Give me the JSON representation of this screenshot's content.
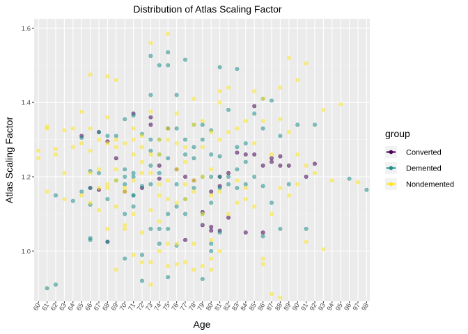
{
  "chart_data": {
    "type": "scatter",
    "title": "Distribution of Atlas Scaling Factor",
    "xlabel": "Age",
    "ylabel": "Atlas Scaling Factor",
    "x_categories": [
      "60",
      "61",
      "62",
      "63",
      "64",
      "65",
      "66",
      "67",
      "68",
      "69",
      "70",
      "71",
      "72",
      "73",
      "74",
      "75",
      "76",
      "77",
      "78",
      "79",
      "80",
      "81",
      "82",
      "83",
      "84",
      "85",
      "86",
      "87",
      "88",
      "89",
      "90",
      "91",
      "92",
      "93",
      "94",
      "95",
      "96",
      "97",
      "98"
    ],
    "ylim": [
      0.865,
      1.625
    ],
    "y_ticks": [
      1.0,
      1.2,
      1.4,
      1.6
    ],
    "y_tick_labels": [
      "1.0",
      "1.2",
      "1.4",
      "1.6"
    ],
    "grid": true,
    "legend": {
      "title": "group",
      "position": "right"
    },
    "series": [
      {
        "name": "Converted",
        "color": "#440154",
        "points": [
          [
            65,
            1.31
          ],
          [
            66,
            1.17
          ],
          [
            67,
            1.165
          ],
          [
            67,
            1.32
          ],
          [
            68,
            1.025
          ],
          [
            68,
            1.295
          ],
          [
            69,
            1.25
          ],
          [
            70,
            1.16
          ],
          [
            71,
            1.37
          ],
          [
            72,
            1.17
          ],
          [
            73,
            1.36
          ],
          [
            73,
            1.34
          ],
          [
            74,
            1.23
          ],
          [
            74,
            1.195
          ],
          [
            75,
            1.33
          ],
          [
            76,
            1.22
          ],
          [
            77,
            1.03
          ],
          [
            77,
            1.2
          ],
          [
            78,
            1.19
          ],
          [
            79,
            1.07
          ],
          [
            79,
            1.105
          ],
          [
            80,
            1.16
          ],
          [
            80,
            1.065
          ],
          [
            80,
            1.055
          ],
          [
            81,
            1.175
          ],
          [
            81,
            1.055
          ],
          [
            81,
            1.2
          ],
          [
            82,
            1.21
          ],
          [
            82,
            1.09
          ],
          [
            83,
            1.265
          ],
          [
            84,
            1.26
          ],
          [
            84,
            1.05
          ],
          [
            85,
            1.39
          ],
          [
            85,
            1.26
          ],
          [
            86,
            1.05
          ],
          [
            86,
            1.23
          ],
          [
            87,
            1.25
          ],
          [
            87,
            1.24
          ],
          [
            88,
            1.255
          ],
          [
            88,
            1.23
          ],
          [
            89,
            1.23
          ],
          [
            91,
            1.2
          ],
          [
            92,
            1.235
          ]
        ]
      },
      {
        "name": "Demented",
        "color": "#21908C",
        "points": [
          [
            61,
            0.9
          ],
          [
            62,
            0.91
          ],
          [
            62,
            1.15
          ],
          [
            64,
            1.135
          ],
          [
            65,
            1.16
          ],
          [
            65,
            1.305
          ],
          [
            66,
            1.035
          ],
          [
            66,
            1.215
          ],
          [
            66,
            1.125
          ],
          [
            66,
            1.03
          ],
          [
            66,
            1.17
          ],
          [
            67,
            1.32
          ],
          [
            67,
            1.21
          ],
          [
            68,
            1.14
          ],
          [
            68,
            1.31
          ],
          [
            68,
            1.025
          ],
          [
            69,
            1.31
          ],
          [
            69,
            1.19
          ],
          [
            70,
            1.355
          ],
          [
            70,
            1.22
          ],
          [
            70,
            1.2
          ],
          [
            70,
            1.1
          ],
          [
            70,
            1.18
          ],
          [
            70,
            0.98
          ],
          [
            71,
            1.365
          ],
          [
            71,
            1.21
          ],
          [
            71,
            1.15
          ],
          [
            71,
            1.15
          ],
          [
            71,
            1.2
          ],
          [
            71,
            1.12
          ],
          [
            72,
            1.175
          ],
          [
            72,
            1.315
          ],
          [
            72,
            0.92
          ],
          [
            72,
            0.99
          ],
          [
            73,
            1.525
          ],
          [
            73,
            1.42
          ],
          [
            73,
            1.3
          ],
          [
            73,
            1.27
          ],
          [
            73,
            1.18
          ],
          [
            73,
            1.06
          ],
          [
            73,
            1.23
          ],
          [
            74,
            1.5
          ],
          [
            74,
            1.3
          ],
          [
            74,
            1.26
          ],
          [
            74,
            1.21
          ],
          [
            74,
            1.06
          ],
          [
            74,
            1.02
          ],
          [
            75,
            1.535
          ],
          [
            75,
            1.5
          ],
          [
            75,
            1.33
          ],
          [
            75,
            1.25
          ],
          [
            75,
            1.1
          ],
          [
            75,
            1.06
          ],
          [
            75,
            0.93
          ],
          [
            76,
            1.33
          ],
          [
            76,
            1.42
          ],
          [
            76,
            1.18
          ],
          [
            76,
            1.12
          ],
          [
            76,
            1.015
          ],
          [
            77,
            1.515
          ],
          [
            77,
            1.3
          ],
          [
            77,
            1.26
          ],
          [
            77,
            1.14
          ],
          [
            77,
            1.1
          ],
          [
            78,
            1.34
          ],
          [
            78,
            1.25
          ],
          [
            78,
            1.17
          ],
          [
            78,
            1.28
          ],
          [
            79,
            1.34
          ],
          [
            79,
            1.3
          ],
          [
            79,
            1.2
          ],
          [
            79,
            1.1
          ],
          [
            79,
            0.925
          ],
          [
            80,
            1.325
          ],
          [
            80,
            1.26
          ],
          [
            80,
            1.2
          ],
          [
            80,
            1.13
          ],
          [
            80,
            1.0
          ],
          [
            80,
            1.02
          ],
          [
            81,
            1.495
          ],
          [
            81,
            1.255
          ],
          [
            81,
            1.2
          ],
          [
            81,
            1.17
          ],
          [
            81,
            1.05
          ],
          [
            82,
            1.38
          ],
          [
            82,
            1.2
          ],
          [
            82,
            1.18
          ],
          [
            83,
            1.49
          ],
          [
            83,
            1.28
          ],
          [
            83,
            1.22
          ],
          [
            83,
            1.17
          ],
          [
            84,
            1.29
          ],
          [
            84,
            1.24
          ],
          [
            84,
            1.18
          ],
          [
            85,
            1.37
          ],
          [
            85,
            1.2
          ],
          [
            86,
            1.41
          ],
          [
            86,
            1.33
          ],
          [
            86,
            1.175
          ],
          [
            86,
            1.04
          ],
          [
            87,
            1.405
          ],
          [
            87,
            1.13
          ],
          [
            88,
            1.31
          ],
          [
            88,
            1.06
          ],
          [
            89,
            1.18
          ],
          [
            90,
            1.34
          ],
          [
            91,
            1.06
          ],
          [
            92,
            1.34
          ],
          [
            96,
            1.195
          ],
          [
            98,
            1.165
          ]
        ]
      },
      {
        "name": "Nondemented",
        "color": "#FDE725",
        "points": [
          [
            60,
            1.27
          ],
          [
            60,
            1.25
          ],
          [
            61,
            1.335
          ],
          [
            61,
            1.33
          ],
          [
            61,
            1.16
          ],
          [
            62,
            1.275
          ],
          [
            62,
            1.26
          ],
          [
            63,
            1.325
          ],
          [
            63,
            1.21
          ],
          [
            63,
            1.14
          ],
          [
            64,
            1.33
          ],
          [
            64,
            1.28
          ],
          [
            65,
            1.375
          ],
          [
            65,
            1.29
          ],
          [
            65,
            1.15
          ],
          [
            66,
            1.475
          ],
          [
            66,
            1.33
          ],
          [
            66,
            1.27
          ],
          [
            66,
            1.21
          ],
          [
            66,
            1.13
          ],
          [
            67,
            1.3
          ],
          [
            67,
            1.22
          ],
          [
            67,
            1.17
          ],
          [
            67,
            1.11
          ],
          [
            68,
            1.47
          ],
          [
            68,
            1.36
          ],
          [
            68,
            1.29
          ],
          [
            68,
            1.17
          ],
          [
            68,
            1.06
          ],
          [
            68,
            1.18
          ],
          [
            69,
            1.46
          ],
          [
            69,
            1.3
          ],
          [
            69,
            1.22
          ],
          [
            69,
            1.19
          ],
          [
            69,
            1.12
          ],
          [
            69,
            0.95
          ],
          [
            69,
            1.28
          ],
          [
            70,
            1.29
          ],
          [
            70,
            1.16
          ],
          [
            70,
            1.17
          ],
          [
            70,
            1.06
          ],
          [
            70,
            1.07
          ],
          [
            71,
            1.33
          ],
          [
            71,
            1.26
          ],
          [
            71,
            1.19
          ],
          [
            71,
            1.1
          ],
          [
            71,
            0.99
          ],
          [
            71,
            1.3
          ],
          [
            72,
            1.31
          ],
          [
            72,
            1.28
          ],
          [
            72,
            1.21
          ],
          [
            72,
            1.05
          ],
          [
            72,
            0.97
          ],
          [
            72,
            1.24
          ],
          [
            73,
            1.56
          ],
          [
            73,
            1.375
          ],
          [
            73,
            1.26
          ],
          [
            73,
            1.21
          ],
          [
            73,
            1.11
          ],
          [
            73,
            0.97
          ],
          [
            73,
            0.91
          ],
          [
            74,
            1.26
          ],
          [
            74,
            1.3
          ],
          [
            74,
            1.15
          ],
          [
            74,
            1.08
          ],
          [
            74,
            1.18
          ],
          [
            74,
            1.0
          ],
          [
            75,
            1.585
          ],
          [
            75,
            1.3
          ],
          [
            75,
            1.33
          ],
          [
            75,
            1.19
          ],
          [
            75,
            1.14
          ],
          [
            75,
            1.02
          ],
          [
            75,
            0.96
          ],
          [
            76,
            1.37
          ],
          [
            76,
            1.29
          ],
          [
            76,
            1.22
          ],
          [
            76,
            1.13
          ],
          [
            76,
            1.02
          ],
          [
            76,
            0.965
          ],
          [
            77,
            1.28
          ],
          [
            77,
            1.24
          ],
          [
            77,
            1.18
          ],
          [
            77,
            1.14
          ],
          [
            77,
            0.97
          ],
          [
            78,
            1.41
          ],
          [
            78,
            1.34
          ],
          [
            78,
            1.19
          ],
          [
            78,
            1.16
          ],
          [
            78,
            1.02
          ],
          [
            78,
            0.95
          ],
          [
            79,
            1.35
          ],
          [
            79,
            1.28
          ],
          [
            79,
            1.2
          ],
          [
            79,
            1.1
          ],
          [
            79,
            0.96
          ],
          [
            80,
            1.32
          ],
          [
            80,
            1.22
          ],
          [
            80,
            1.15
          ],
          [
            80,
            1.03
          ],
          [
            80,
            0.98
          ],
          [
            80,
            0.95
          ],
          [
            81,
            1.43
          ],
          [
            81,
            1.4
          ],
          [
            81,
            1.3
          ],
          [
            81,
            1.16
          ],
          [
            81,
            1.0
          ],
          [
            82,
            1.44
          ],
          [
            82,
            1.32
          ],
          [
            82,
            1.1
          ],
          [
            83,
            1.33
          ],
          [
            83,
            1.19
          ],
          [
            83,
            1.13
          ],
          [
            84,
            1.35
          ],
          [
            84,
            1.17
          ],
          [
            84,
            1.14
          ],
          [
            85,
            1.43
          ],
          [
            85,
            1.29
          ],
          [
            85,
            1.12
          ],
          [
            86,
            1.41
          ],
          [
            86,
            1.35
          ],
          [
            86,
            0.98
          ],
          [
            86,
            0.965
          ],
          [
            87,
            1.26
          ],
          [
            87,
            1.1
          ],
          [
            87,
            0.885
          ],
          [
            88,
            1.44
          ],
          [
            88,
            1.355
          ],
          [
            88,
            1.17
          ],
          [
            88,
            0.875
          ],
          [
            89,
            1.52
          ],
          [
            89,
            1.32
          ],
          [
            89,
            1.15
          ],
          [
            90,
            1.46
          ],
          [
            90,
            1.26
          ],
          [
            90,
            1.18
          ],
          [
            91,
            1.505
          ],
          [
            91,
            1.23
          ],
          [
            91,
            1.025
          ],
          [
            92,
            1.21
          ],
          [
            93,
            1.38
          ],
          [
            93,
            1.005
          ],
          [
            94,
            1.19
          ],
          [
            95,
            1.395
          ],
          [
            97,
            1.185
          ]
        ]
      }
    ]
  }
}
